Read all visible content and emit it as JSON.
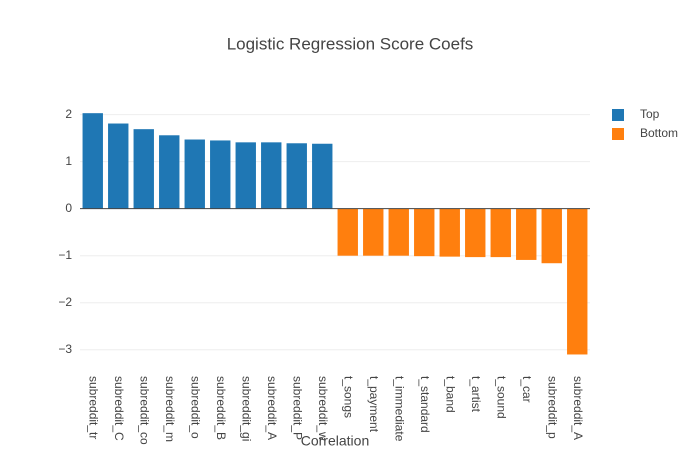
{
  "chart_data": {
    "type": "bar",
    "title": "Logistic Regression Score Coefs",
    "x_label": "Correlation",
    "categories": [
      "subreddit_tr",
      "subreddit_C",
      "subreddit_co",
      "subreddit_m",
      "subreddit_o",
      "subreddit_B",
      "subreddit_gi",
      "subreddit_A",
      "subreddit_P",
      "subreddit_w",
      "t_songs",
      "t_payment",
      "t_immediate",
      "t_standard",
      "t_band",
      "t_artist",
      "t_sound",
      "t_car",
      "subreddit_p",
      "subreddit_A"
    ],
    "series": [
      {
        "name": "Top",
        "color": "#1f77b4",
        "values": [
          2.03,
          1.81,
          1.69,
          1.56,
          1.47,
          1.45,
          1.41,
          1.41,
          1.39,
          1.38,
          null,
          null,
          null,
          null,
          null,
          null,
          null,
          null,
          null,
          null
        ]
      },
      {
        "name": "Bottom",
        "color": "#ff7f0e",
        "values": [
          null,
          null,
          null,
          null,
          null,
          null,
          null,
          null,
          null,
          null,
          -1.0,
          -1.0,
          -1.0,
          -1.01,
          -1.02,
          -1.03,
          -1.03,
          -1.09,
          -1.16,
          -3.1
        ]
      }
    ],
    "ylim": [
      -3.26,
      2.14
    ],
    "yticks": [
      {
        "value": -3,
        "label": "−3"
      },
      {
        "value": -2,
        "label": "−2"
      },
      {
        "value": -1,
        "label": "−1"
      },
      0,
      1,
      2
    ],
    "grid": true,
    "legend": "top-right"
  }
}
